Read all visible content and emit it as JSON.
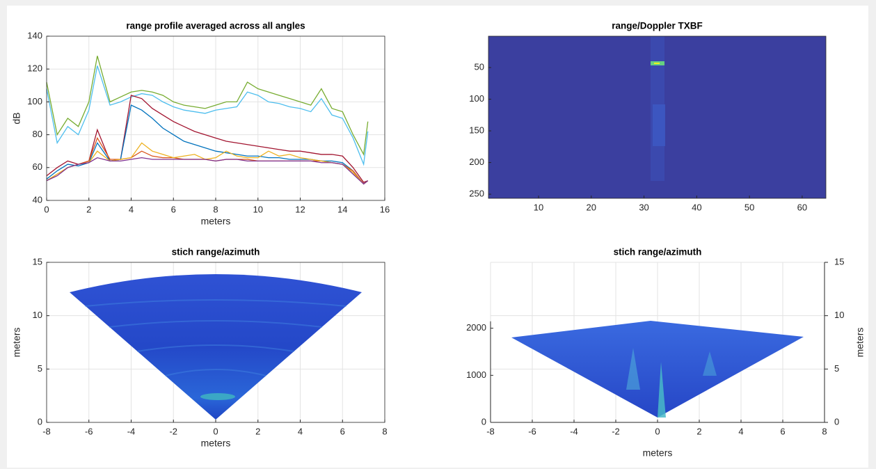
{
  "chart_data": [
    {
      "type": "line",
      "title": "range profile averaged across all angles",
      "xlabel": "meters",
      "ylabel": "dB",
      "xlim": [
        0,
        16
      ],
      "ylim": [
        40,
        140
      ],
      "xticks": [
        0,
        2,
        4,
        6,
        8,
        10,
        12,
        14,
        16
      ],
      "yticks": [
        40,
        60,
        80,
        100,
        120,
        140
      ],
      "grid": true,
      "x": [
        0,
        0.5,
        1,
        1.5,
        2,
        2.4,
        3,
        3.5,
        4,
        4.5,
        5,
        5.5,
        6,
        6.5,
        7,
        7.5,
        8,
        8.5,
        9,
        9.5,
        10,
        10.5,
        11,
        11.5,
        12,
        12.5,
        13,
        13.5,
        14,
        14.5,
        15,
        15.2
      ],
      "series": [
        {
          "color": "#77ac30",
          "values": [
            112,
            80,
            90,
            85,
            100,
            128,
            100,
            103,
            106,
            107,
            106,
            104,
            100,
            98,
            97,
            96,
            98,
            100,
            100,
            112,
            108,
            106,
            104,
            102,
            100,
            98,
            108,
            96,
            94,
            80,
            68,
            88
          ]
        },
        {
          "color": "#4dbeee",
          "values": [
            108,
            75,
            85,
            80,
            95,
            122,
            98,
            100,
            103,
            105,
            104,
            100,
            97,
            95,
            94,
            93,
            95,
            96,
            97,
            106,
            104,
            100,
            99,
            97,
            96,
            94,
            102,
            92,
            90,
            78,
            62,
            82
          ]
        },
        {
          "color": "#a2142f",
          "values": [
            55,
            60,
            64,
            62,
            64,
            83,
            64,
            65,
            104,
            102,
            96,
            92,
            88,
            85,
            82,
            80,
            78,
            76,
            75,
            74,
            73,
            72,
            71,
            70,
            70,
            69,
            68,
            68,
            67,
            60,
            51,
            52
          ]
        },
        {
          "color": "#0072bd",
          "values": [
            53,
            58,
            62,
            61,
            63,
            75,
            64,
            65,
            98,
            95,
            90,
            84,
            80,
            76,
            74,
            72,
            70,
            69,
            68,
            67,
            67,
            66,
            66,
            65,
            65,
            65,
            64,
            64,
            63,
            58,
            50,
            52
          ]
        },
        {
          "color": "#d95319",
          "values": [
            52,
            56,
            60,
            62,
            64,
            78,
            65,
            65,
            66,
            70,
            67,
            66,
            66,
            65,
            65,
            65,
            64,
            65,
            65,
            65,
            64,
            64,
            64,
            64,
            64,
            64,
            64,
            63,
            62,
            58,
            50,
            52
          ]
        },
        {
          "color": "#edb120",
          "values": [
            52,
            56,
            60,
            62,
            63,
            70,
            64,
            65,
            66,
            75,
            70,
            68,
            66,
            67,
            68,
            65,
            66,
            70,
            67,
            66,
            66,
            70,
            67,
            68,
            66,
            65,
            64,
            63,
            62,
            57,
            50,
            52
          ]
        },
        {
          "color": "#7e2f8e",
          "values": [
            52,
            55,
            60,
            62,
            63,
            66,
            64,
            64,
            65,
            66,
            65,
            65,
            65,
            65,
            65,
            65,
            64,
            65,
            65,
            64,
            64,
            64,
            64,
            64,
            64,
            64,
            63,
            63,
            62,
            56,
            50,
            52
          ]
        }
      ]
    },
    {
      "type": "heatmap",
      "title": "range/Doppler TXBF",
      "xlim": [
        0.5,
        64.5
      ],
      "ylim": [
        256.5,
        0.5
      ],
      "xticks": [
        10,
        20,
        30,
        40,
        50,
        60
      ],
      "yticks": [
        50,
        100,
        150,
        200,
        250
      ],
      "grid": false
    },
    {
      "type": "polar",
      "title": "stich range/azimuth",
      "xlabel": "meters",
      "ylabel": "meters",
      "xlim": [
        -8,
        8
      ],
      "ylim": [
        0,
        15
      ],
      "xticks": [
        -8,
        -6,
        -4,
        -2,
        0,
        2,
        4,
        6,
        8
      ],
      "yticks": [
        0,
        5,
        10,
        15
      ],
      "grid": true
    },
    {
      "type": "surface",
      "title": "stich range/azimuth",
      "xlabel": "meters",
      "y2label": "meters",
      "xlim": [
        -8,
        8
      ],
      "xticks": [
        -8,
        -6,
        -4,
        -2,
        0,
        2,
        4,
        6,
        8
      ],
      "ylim": [
        0,
        3400
      ],
      "yticks": [
        0,
        1000,
        2000
      ],
      "y2lim": [
        0,
        15
      ],
      "y2ticks": [
        0,
        5,
        10,
        15
      ],
      "grid": true
    }
  ]
}
